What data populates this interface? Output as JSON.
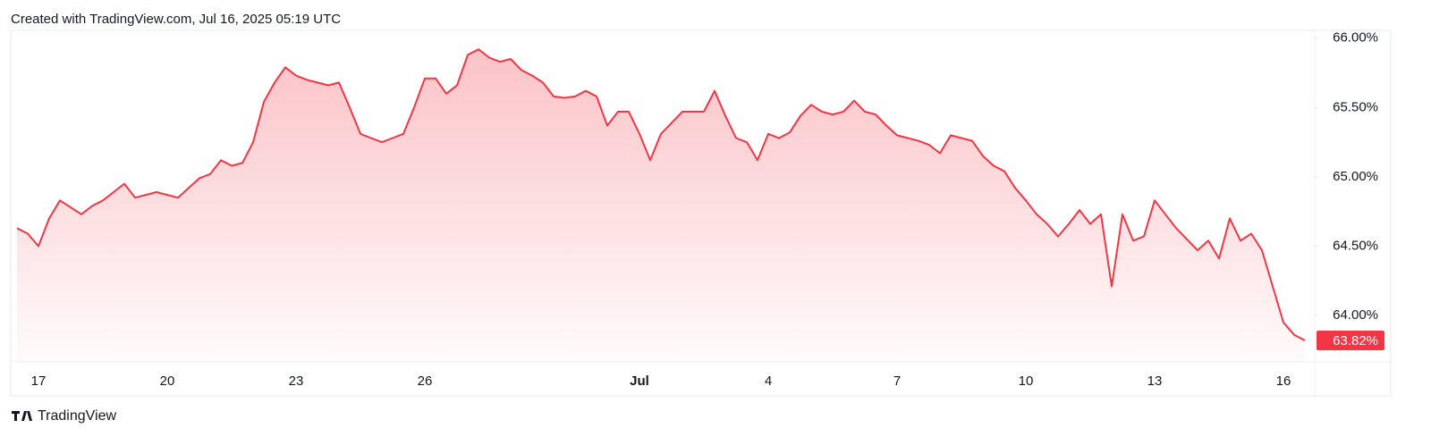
{
  "chart_data": {
    "type": "area",
    "title": "Created with TradingView.com, Jul 16, 2025 05:19 UTC",
    "brand": "TradingView",
    "categories": [
      null,
      null,
      "17",
      null,
      null,
      null,
      null,
      null,
      null,
      null,
      null,
      null,
      null,
      null,
      "20",
      null,
      null,
      null,
      null,
      null,
      null,
      null,
      null,
      null,
      null,
      null,
      "23",
      null,
      null,
      null,
      null,
      null,
      null,
      null,
      null,
      null,
      null,
      null,
      "26",
      null,
      null,
      null,
      null,
      null,
      null,
      null,
      null,
      null,
      null,
      null,
      null,
      null,
      null,
      null,
      null,
      null,
      null,
      null,
      "Jul",
      null,
      null,
      null,
      null,
      null,
      null,
      null,
      null,
      null,
      null,
      null,
      "4",
      null,
      null,
      null,
      null,
      null,
      null,
      null,
      null,
      null,
      null,
      null,
      "7",
      null,
      null,
      null,
      null,
      null,
      null,
      null,
      null,
      null,
      null,
      null,
      "10",
      null,
      null,
      null,
      null,
      null,
      null,
      null,
      null,
      null,
      null,
      null,
      "13",
      null,
      null,
      null,
      null,
      null,
      null,
      null,
      null,
      null,
      null,
      null,
      "16",
      null,
      null
    ],
    "values": [
      64.63,
      64.59,
      64.5,
      64.7,
      64.83,
      64.78,
      64.73,
      64.79,
      64.83,
      64.89,
      64.95,
      64.85,
      64.87,
      64.89,
      64.87,
      64.85,
      64.92,
      64.99,
      65.02,
      65.12,
      65.08,
      65.1,
      65.25,
      65.54,
      65.68,
      65.79,
      65.73,
      65.7,
      65.68,
      65.66,
      65.68,
      65.5,
      65.31,
      65.28,
      65.25,
      65.28,
      65.31,
      65.5,
      65.71,
      65.71,
      65.6,
      65.66,
      65.88,
      65.92,
      65.86,
      65.83,
      65.85,
      65.77,
      65.73,
      65.68,
      65.58,
      65.57,
      65.58,
      65.62,
      65.58,
      65.37,
      65.47,
      65.47,
      65.31,
      65.12,
      65.31,
      65.39,
      65.47,
      65.47,
      65.47,
      65.62,
      65.44,
      65.28,
      65.25,
      65.12,
      65.31,
      65.28,
      65.32,
      65.44,
      65.52,
      65.47,
      65.45,
      65.47,
      65.55,
      65.47,
      65.45,
      65.37,
      65.3,
      65.28,
      65.26,
      65.23,
      65.17,
      65.3,
      65.28,
      65.26,
      65.15,
      65.08,
      65.04,
      64.92,
      64.83,
      64.73,
      64.66,
      64.57,
      64.66,
      64.76,
      64.66,
      64.73,
      64.21,
      64.73,
      64.54,
      64.57,
      64.83,
      64.73,
      64.63,
      64.55,
      64.47,
      64.54,
      64.41,
      64.7,
      64.54,
      64.59,
      64.47,
      64.21,
      63.95,
      63.86,
      63.82
    ],
    "current_value": {
      "value": 63.82,
      "label": "63.82%"
    },
    "color": "#f23645",
    "ylim": [
      63.665,
      66.05
    ],
    "yticks": [
      {
        "value": 64,
        "label": "64.00%"
      },
      {
        "value": 64.5,
        "label": "64.50%"
      },
      {
        "value": 65,
        "label": "65.00%"
      },
      {
        "value": 65.5,
        "label": "65.50%"
      },
      {
        "value": 66,
        "label": "66.00%"
      }
    ],
    "grid": false
  }
}
